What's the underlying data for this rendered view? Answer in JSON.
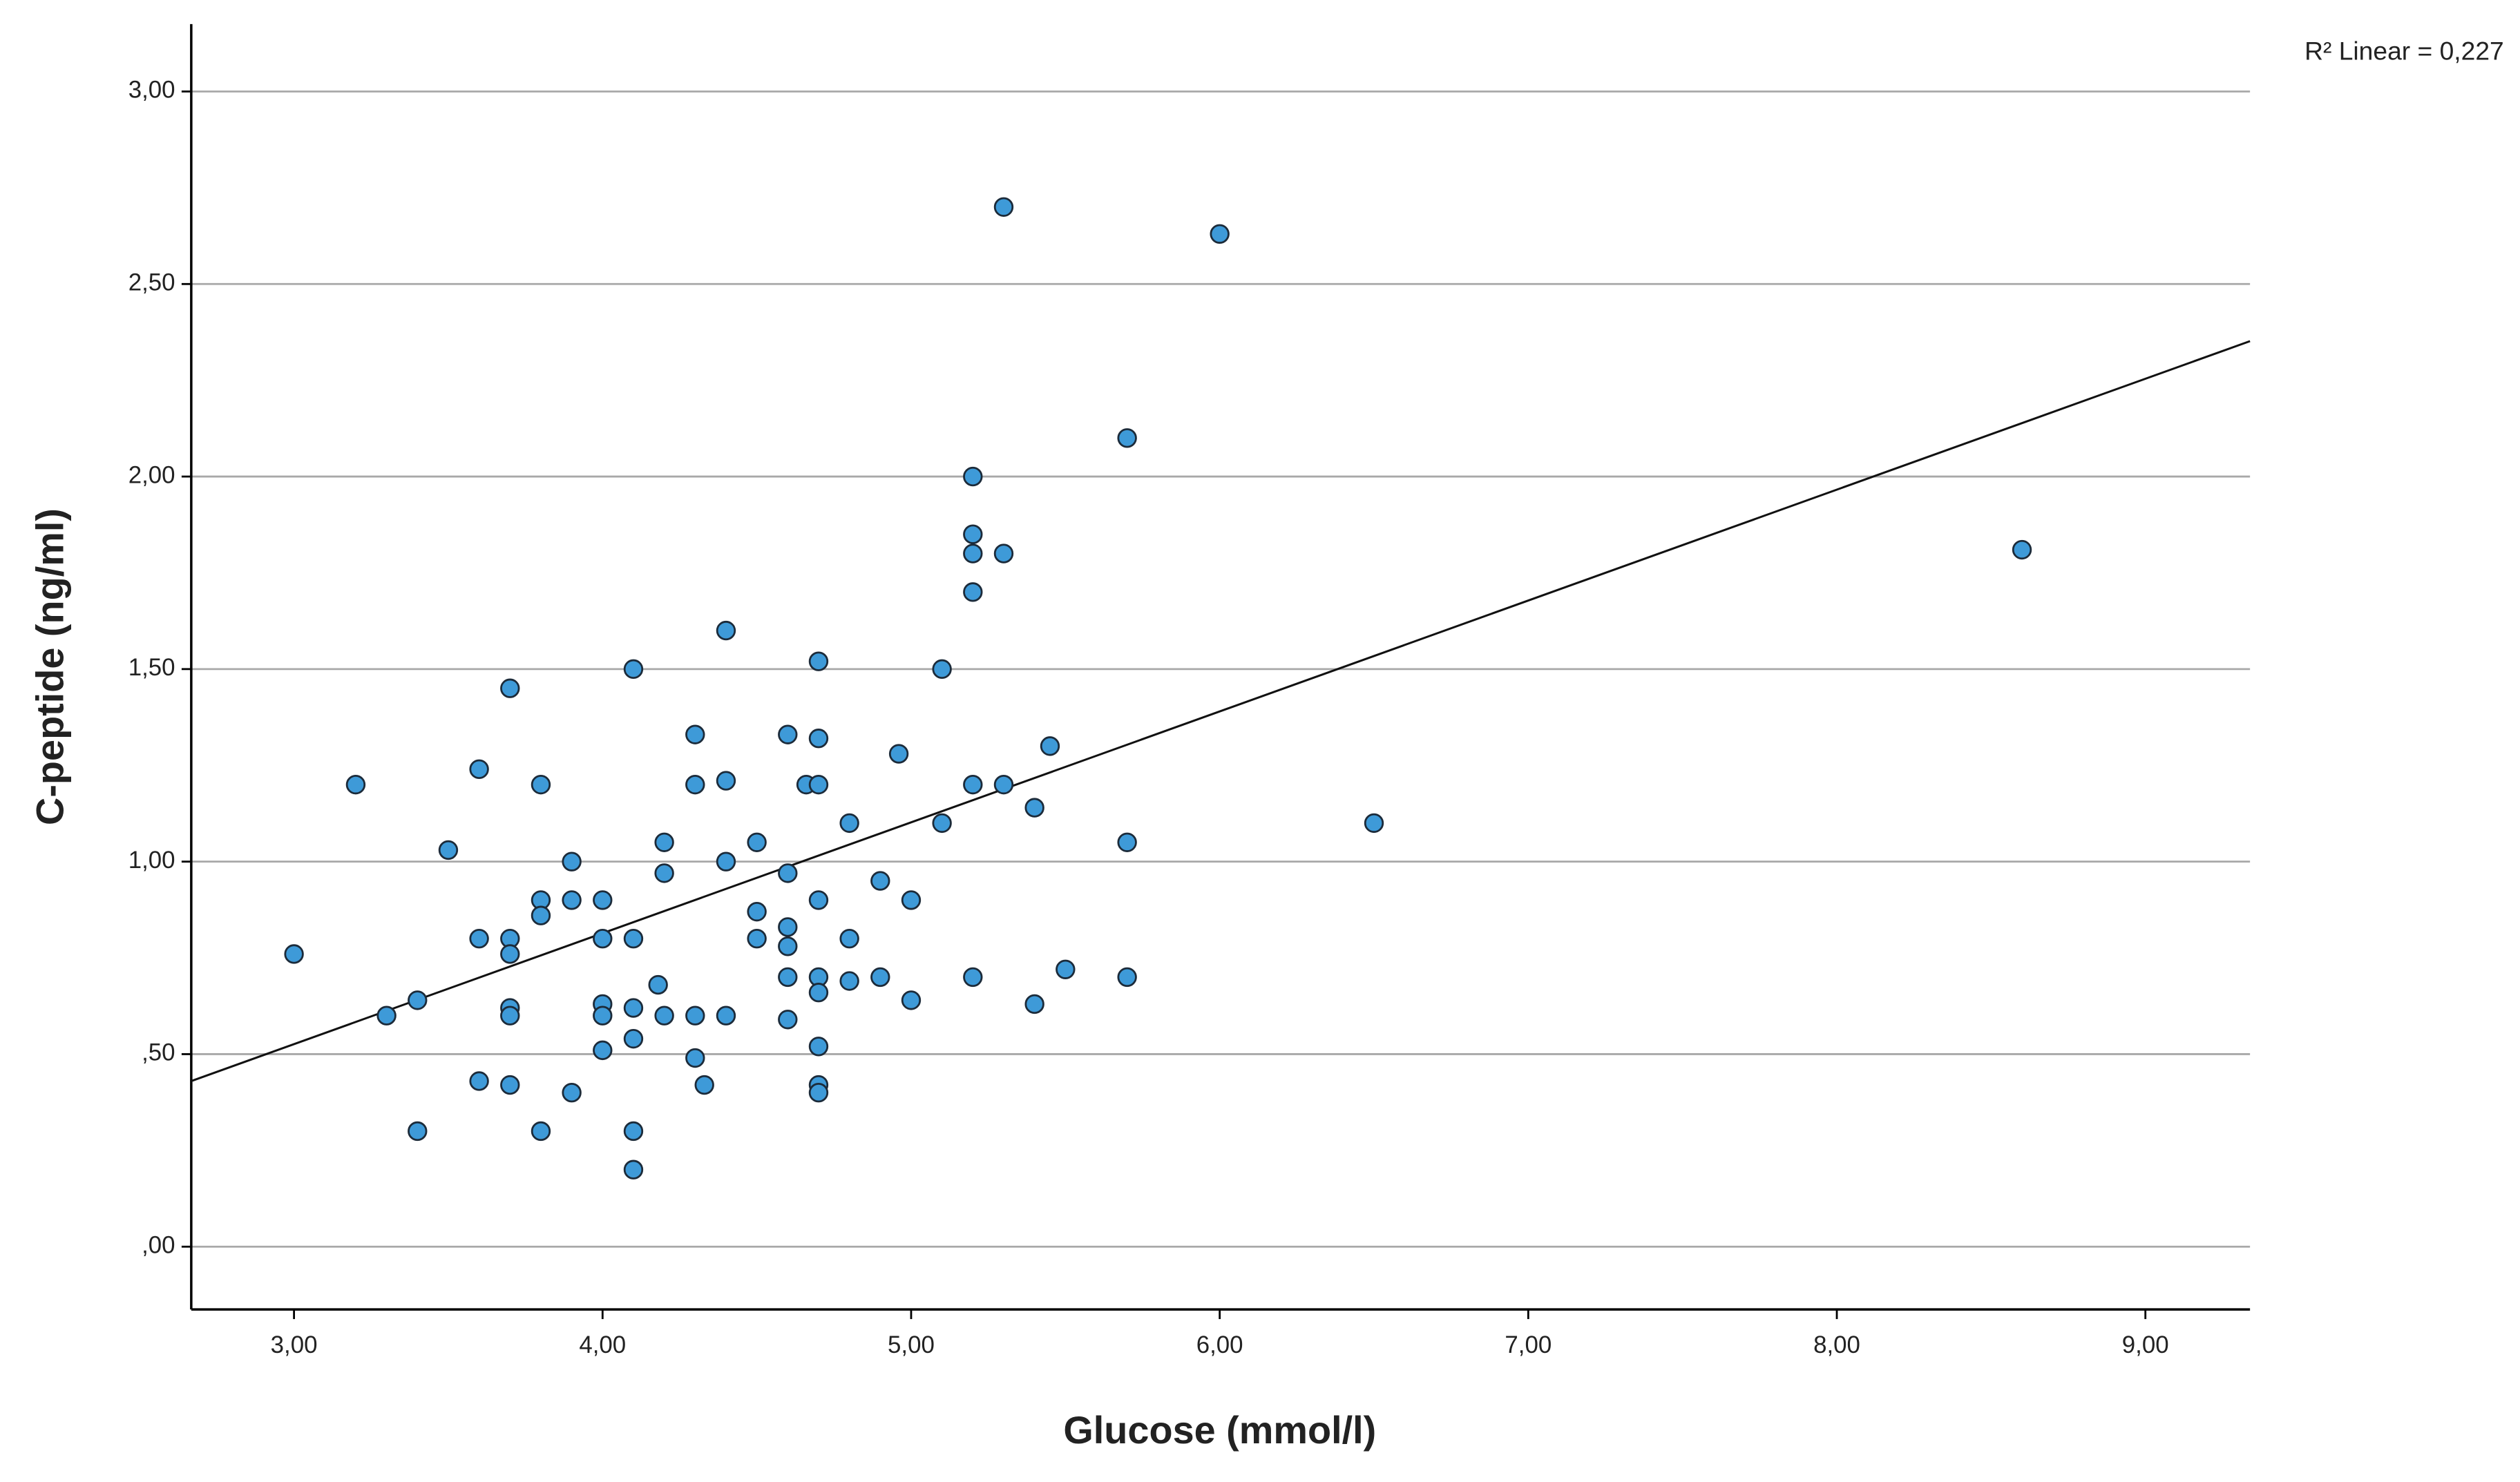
{
  "chart_data": {
    "type": "scatter",
    "x_label": "Glucose (mmol/l)",
    "y_label": "C-peptide (ng/ml)",
    "annotation": "R² Linear = 0,227",
    "color": "#3e9ad8",
    "edge_color": "#1c2b3a",
    "grid": true,
    "fit": {
      "slope": 0.288,
      "intercept": -0.338
    },
    "xlim": [
      2.667,
      9.339
    ],
    "ylim": [
      -0.163,
      3.175
    ],
    "xticks": [
      {
        "value": 3,
        "label": "3,00"
      },
      {
        "value": 4,
        "label": "4,00"
      },
      {
        "value": 5,
        "label": "5,00"
      },
      {
        "value": 6,
        "label": "6,00"
      },
      {
        "value": 7,
        "label": "7,00"
      },
      {
        "value": 8,
        "label": "8,00"
      },
      {
        "value": 9,
        "label": "9,00"
      }
    ],
    "yticks": [
      {
        "value": 0,
        "label": ",00"
      },
      {
        "value": 0.5,
        "label": ",50"
      },
      {
        "value": 1,
        "label": "1,00"
      },
      {
        "value": 1.5,
        "label": "1,50"
      },
      {
        "value": 2,
        "label": "2,00"
      },
      {
        "value": 2.5,
        "label": "2,50"
      },
      {
        "value": 3,
        "label": "3,00"
      }
    ],
    "x": [
      3.0,
      3.2,
      3.3,
      3.4,
      3.4,
      3.5,
      3.6,
      3.6,
      3.6,
      3.7,
      3.7,
      3.7,
      3.7,
      3.7,
      3.7,
      3.8,
      3.8,
      3.8,
      3.8,
      3.9,
      3.9,
      3.9,
      4.0,
      4.0,
      4.0,
      4.0,
      4.0,
      4.1,
      4.1,
      4.1,
      4.1,
      4.1,
      4.1,
      4.18,
      4.2,
      4.2,
      4.2,
      4.3,
      4.3,
      4.3,
      4.3,
      4.33,
      4.4,
      4.4,
      4.4,
      4.4,
      4.5,
      4.5,
      4.5,
      4.6,
      4.6,
      4.6,
      4.6,
      4.6,
      4.6,
      4.66,
      4.7,
      4.7,
      4.7,
      4.7,
      4.7,
      4.7,
      4.7,
      4.7,
      4.7,
      4.8,
      4.8,
      4.8,
      4.9,
      4.9,
      4.96,
      5.0,
      5.0,
      5.1,
      5.1,
      5.2,
      5.2,
      5.2,
      5.2,
      5.2,
      5.2,
      5.3,
      5.3,
      5.3,
      5.4,
      5.4,
      5.45,
      5.5,
      5.7,
      5.7,
      5.7,
      6.0,
      6.5,
      8.6
    ],
    "values": [
      0.76,
      1.2,
      0.6,
      0.64,
      0.3,
      1.03,
      1.24,
      0.8,
      0.43,
      1.45,
      0.8,
      0.76,
      0.62,
      0.6,
      0.42,
      1.2,
      0.9,
      0.86,
      0.3,
      1.0,
      0.9,
      0.4,
      0.9,
      0.8,
      0.63,
      0.6,
      0.51,
      1.5,
      0.8,
      0.62,
      0.54,
      0.3,
      0.2,
      0.68,
      1.05,
      0.97,
      0.6,
      1.33,
      1.2,
      0.6,
      0.49,
      0.42,
      1.6,
      1.21,
      1.0,
      0.6,
      1.05,
      0.87,
      0.8,
      1.33,
      0.97,
      0.83,
      0.78,
      0.7,
      0.59,
      1.2,
      1.52,
      1.32,
      1.2,
      0.9,
      0.7,
      0.66,
      0.52,
      0.42,
      0.4,
      1.1,
      0.8,
      0.69,
      0.95,
      0.7,
      1.28,
      0.9,
      0.64,
      1.5,
      1.1,
      2.0,
      1.85,
      1.8,
      1.7,
      1.2,
      0.7,
      2.7,
      1.8,
      1.2,
      1.14,
      0.63,
      1.3,
      0.72,
      2.1,
      1.05,
      0.7,
      2.63,
      1.1,
      1.81
    ]
  }
}
